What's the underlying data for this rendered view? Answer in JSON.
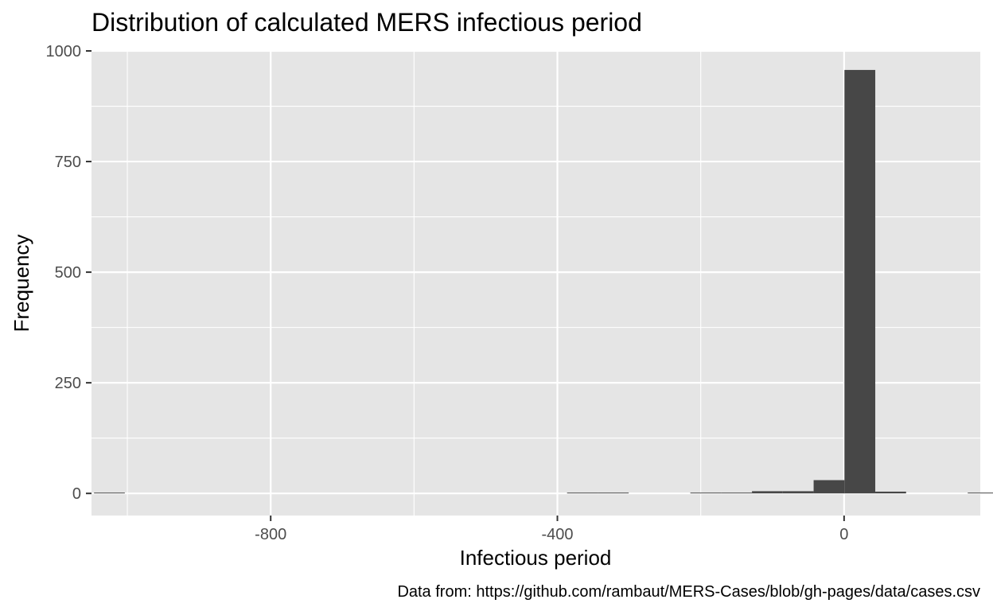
{
  "chart_data": {
    "type": "bar",
    "title": "Distribution of calculated MERS infectious period",
    "xlabel": "Infectious period",
    "ylabel": "Frequency",
    "caption": "Data from: https://github.com/rambaut/MERS-Cases/blob/gh-pages/data/cases.csv",
    "xlim": [
      -1050,
      190
    ],
    "ylim": [
      -50,
      1000
    ],
    "x_ticks": [
      -800,
      -400,
      0
    ],
    "x_tick_labels": [
      "-800",
      "-400",
      "0"
    ],
    "y_ticks": [
      0,
      250,
      500,
      750,
      1000
    ],
    "y_tick_labels": [
      "0",
      "250",
      "500",
      "750",
      "1000"
    ],
    "grid": true,
    "bin_width": 43,
    "bars": [
      {
        "x": -1025,
        "count": 1
      },
      {
        "x": -365,
        "count": 1
      },
      {
        "x": -322,
        "count": 1
      },
      {
        "x": -193,
        "count": 1
      },
      {
        "x": -150,
        "count": 1
      },
      {
        "x": -107,
        "count": 5
      },
      {
        "x": -64,
        "count": 5
      },
      {
        "x": -21,
        "count": 30
      },
      {
        "x": 22,
        "count": 957
      },
      {
        "x": 65,
        "count": 4
      },
      {
        "x": 194,
        "count": 1
      }
    ],
    "colors": {
      "panel": "#e5e5e5",
      "grid": "#ffffff",
      "bar": "#474747",
      "tick_text": "#4d4d4d",
      "tick_mark": "#333333"
    }
  }
}
